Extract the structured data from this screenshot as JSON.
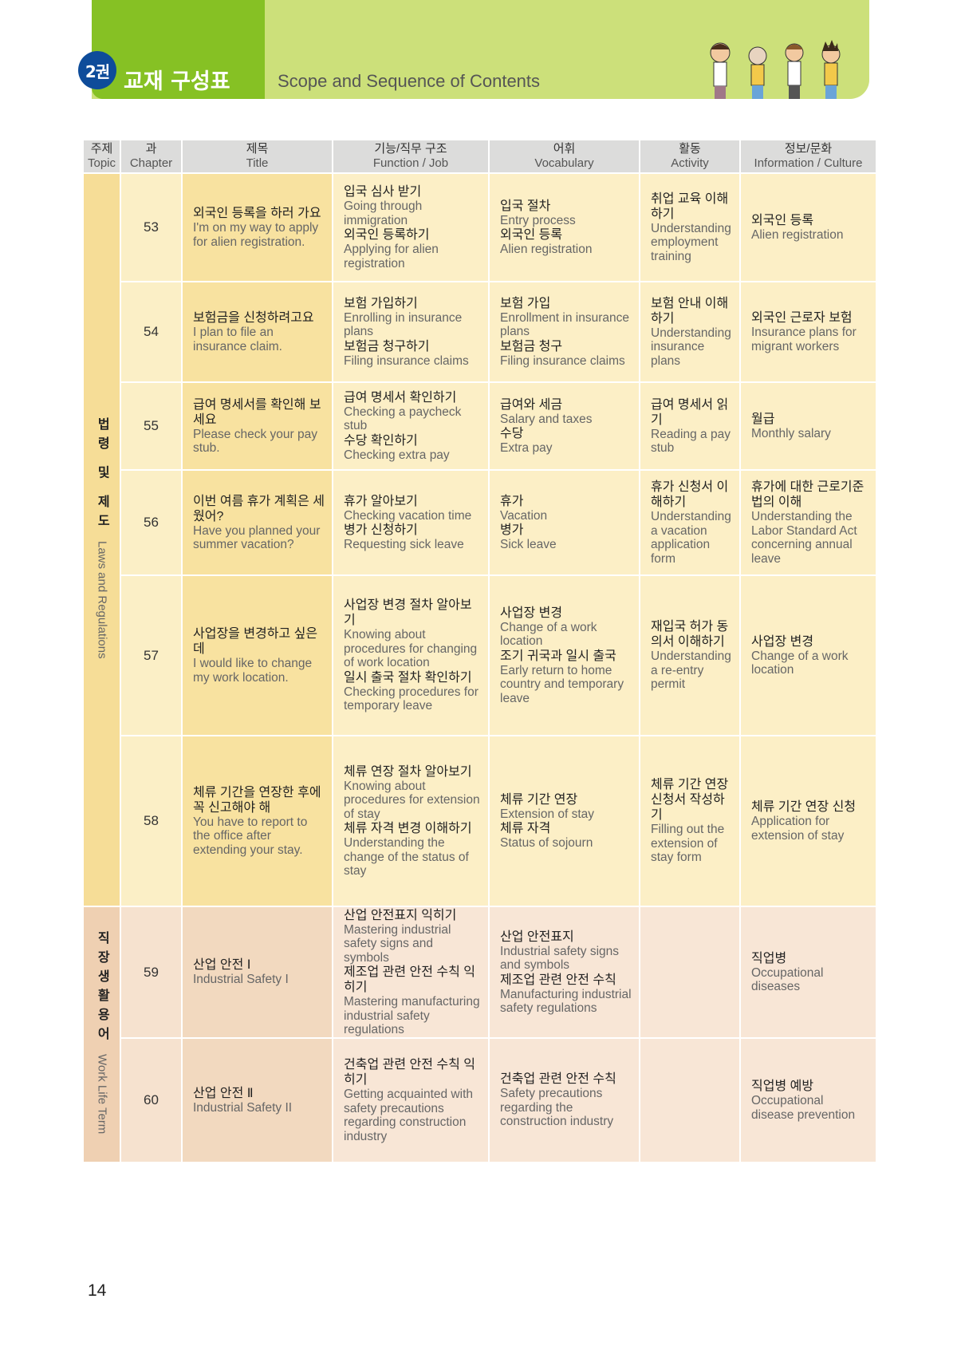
{
  "header": {
    "volume_badge": "2권",
    "title_ko": "교재 구성표",
    "title_en": "Scope and Sequence of Contents",
    "colors": {
      "dark_green": "#86c124",
      "light_green": "#cce07a",
      "badge": "#0e4c9a"
    }
  },
  "columns": [
    {
      "ko": "주제",
      "en": "Topic"
    },
    {
      "ko": "과",
      "en": "Chapter"
    },
    {
      "ko": "제목",
      "en": "Title"
    },
    {
      "ko": "기능/직무 구조",
      "en": "Function / Job"
    },
    {
      "ko": "어휘",
      "en": "Vocabulary"
    },
    {
      "ko": "활동",
      "en": "Activity"
    },
    {
      "ko": "정보/문화",
      "en": "Information / Culture"
    }
  ],
  "topics": [
    {
      "ko": "법령 및 제도",
      "en": "Laws and Regulations",
      "rows": 6,
      "color": "#f6dd97"
    },
    {
      "ko": "직장생활용어",
      "en": "Work Life Term",
      "rows": 2,
      "color": "#efd0b2"
    }
  ],
  "rows": [
    {
      "chapter": "53",
      "title": [
        {
          "ko": "외국인 등록을 하러 가요",
          "en": "I'm on my way to apply for alien registration."
        }
      ],
      "function": [
        {
          "ko": "입국 심사 받기",
          "en": "Going through immigration"
        },
        {
          "ko": "외국인 등록하기",
          "en": "Applying for alien registration"
        }
      ],
      "vocabulary": [
        {
          "ko": "입국 절차",
          "en": "Entry process"
        },
        {
          "ko": "외국인 등록",
          "en": "Alien registration"
        }
      ],
      "activity": [
        {
          "ko": "취업 교육 이해하기",
          "en": "Understanding employment training"
        }
      ],
      "info": [
        {
          "ko": "외국인 등록",
          "en": "Alien registration"
        }
      ]
    },
    {
      "chapter": "54",
      "title": [
        {
          "ko": "보험금을 신청하려고요",
          "en": "I plan to file an insurance claim."
        }
      ],
      "function": [
        {
          "ko": "보험 가입하기",
          "en": "Enrolling in insurance plans"
        },
        {
          "ko": "보험금 청구하기",
          "en": "Filing insurance claims"
        }
      ],
      "vocabulary": [
        {
          "ko": "보험 가입",
          "en": "Enrollment in insurance plans"
        },
        {
          "ko": "보험금 청구",
          "en": "Filing insurance claims"
        }
      ],
      "activity": [
        {
          "ko": "보험 안내 이해하기",
          "en": "Understanding insurance plans"
        }
      ],
      "info": [
        {
          "ko": "외국인 근로자 보험",
          "en": "Insurance plans for migrant workers"
        }
      ]
    },
    {
      "chapter": "55",
      "title": [
        {
          "ko": "급여 명세서를 확인해 보세요",
          "en": "Please check your pay stub."
        }
      ],
      "function": [
        {
          "ko": "급여 명세서 확인하기",
          "en": "Checking a paycheck stub"
        },
        {
          "ko": "수당 확인하기",
          "en": "Checking extra pay"
        }
      ],
      "vocabulary": [
        {
          "ko": "급여와 세금",
          "en": "Salary and taxes"
        },
        {
          "ko": "수당",
          "en": "Extra pay"
        }
      ],
      "activity": [
        {
          "ko": "급여 명세서 읽기",
          "en": "Reading a pay stub"
        }
      ],
      "info": [
        {
          "ko": "월급",
          "en": "Monthly salary"
        }
      ]
    },
    {
      "chapter": "56",
      "title": [
        {
          "ko": "이번 여름 휴가 계획은 세웠어?",
          "en": "Have you planned your summer vacation?"
        }
      ],
      "function": [
        {
          "ko": "휴가 알아보기",
          "en": "Checking vacation time"
        },
        {
          "ko": "병가 신청하기",
          "en": "Requesting sick leave"
        }
      ],
      "vocabulary": [
        {
          "ko": "휴가",
          "en": "Vacation"
        },
        {
          "ko": "병가",
          "en": "Sick leave"
        }
      ],
      "activity": [
        {
          "ko": "휴가 신청서 이해하기",
          "en": "Understanding a vacation application form"
        }
      ],
      "info": [
        {
          "ko": "휴가에 대한 근로기준법의 이해",
          "en": "Understanding the Labor Standard Act concerning annual leave"
        }
      ]
    },
    {
      "chapter": "57",
      "title": [
        {
          "ko": "사업장을 변경하고 싶은데",
          "en": "I would like to change my work location."
        }
      ],
      "function": [
        {
          "ko": "사업장 변경 절차 알아보기",
          "en": "Knowing about procedures for changing of work location"
        },
        {
          "ko": "일시 출국 절차 확인하기",
          "en": "Checking procedures for temporary leave"
        }
      ],
      "vocabulary": [
        {
          "ko": "사업장 변경",
          "en": "Change of a work location"
        },
        {
          "ko": "조기 귀국과 일시 출국",
          "en": "Early return to home country and temporary leave"
        }
      ],
      "activity": [
        {
          "ko": "재입국 허가 동의서 이해하기",
          "en": "Understanding a re-entry permit"
        }
      ],
      "info": [
        {
          "ko": "사업장 변경",
          "en": "Change of a work location"
        }
      ]
    },
    {
      "chapter": "58",
      "title": [
        {
          "ko": "체류 기간을 연장한 후에 꼭 신고해야 해",
          "en": "You have to report to the office after extending your stay."
        }
      ],
      "function": [
        {
          "ko": "체류 연장 절차 알아보기",
          "en": "Knowing about procedures for extension of stay"
        },
        {
          "ko": "체류 자격 변경 이해하기",
          "en": "Understanding the change of the status of stay"
        }
      ],
      "vocabulary": [
        {
          "ko": "체류 기간 연장",
          "en": "Extension of stay"
        },
        {
          "ko": "체류 자격",
          "en": "Status of sojourn"
        }
      ],
      "activity": [
        {
          "ko": "체류 기간 연장 신청서 작성하기",
          "en": "Filling out the extension of stay form"
        }
      ],
      "info": [
        {
          "ko": "체류 기간 연장 신청",
          "en": "Application for extension of stay"
        }
      ]
    },
    {
      "chapter": "59",
      "title": [
        {
          "ko": "산업 안전 Ⅰ",
          "en": "Industrial Safety I"
        }
      ],
      "function": [
        {
          "ko": "산업 안전표지 익히기",
          "en": "Mastering industrial safety signs and symbols"
        },
        {
          "ko": "제조업 관련 안전 수칙 익히기",
          "en": "Mastering manufacturing industrial safety regulations"
        }
      ],
      "vocabulary": [
        {
          "ko": "산업 안전표지",
          "en": "Industrial safety signs and symbols"
        },
        {
          "ko": "제조업 관련 안전 수칙",
          "en": "Manufacturing industrial safety regulations"
        }
      ],
      "activity": [],
      "info": [
        {
          "ko": "직업병",
          "en": "Occupational diseases"
        }
      ]
    },
    {
      "chapter": "60",
      "title": [
        {
          "ko": "산업 안전 Ⅱ",
          "en": "Industrial Safety II"
        }
      ],
      "function": [
        {
          "ko": "건축업 관련 안전 수칙 익히기",
          "en": "Getting acquainted with safety precautions regarding construction industry"
        }
      ],
      "vocabulary": [
        {
          "ko": "건축업 관련 안전 수칙",
          "en": "Safety precautions regarding the construction industry"
        }
      ],
      "activity": [],
      "info": [
        {
          "ko": "직업병 예방",
          "en": "Occupational disease prevention"
        }
      ]
    }
  ],
  "page_number": "14"
}
